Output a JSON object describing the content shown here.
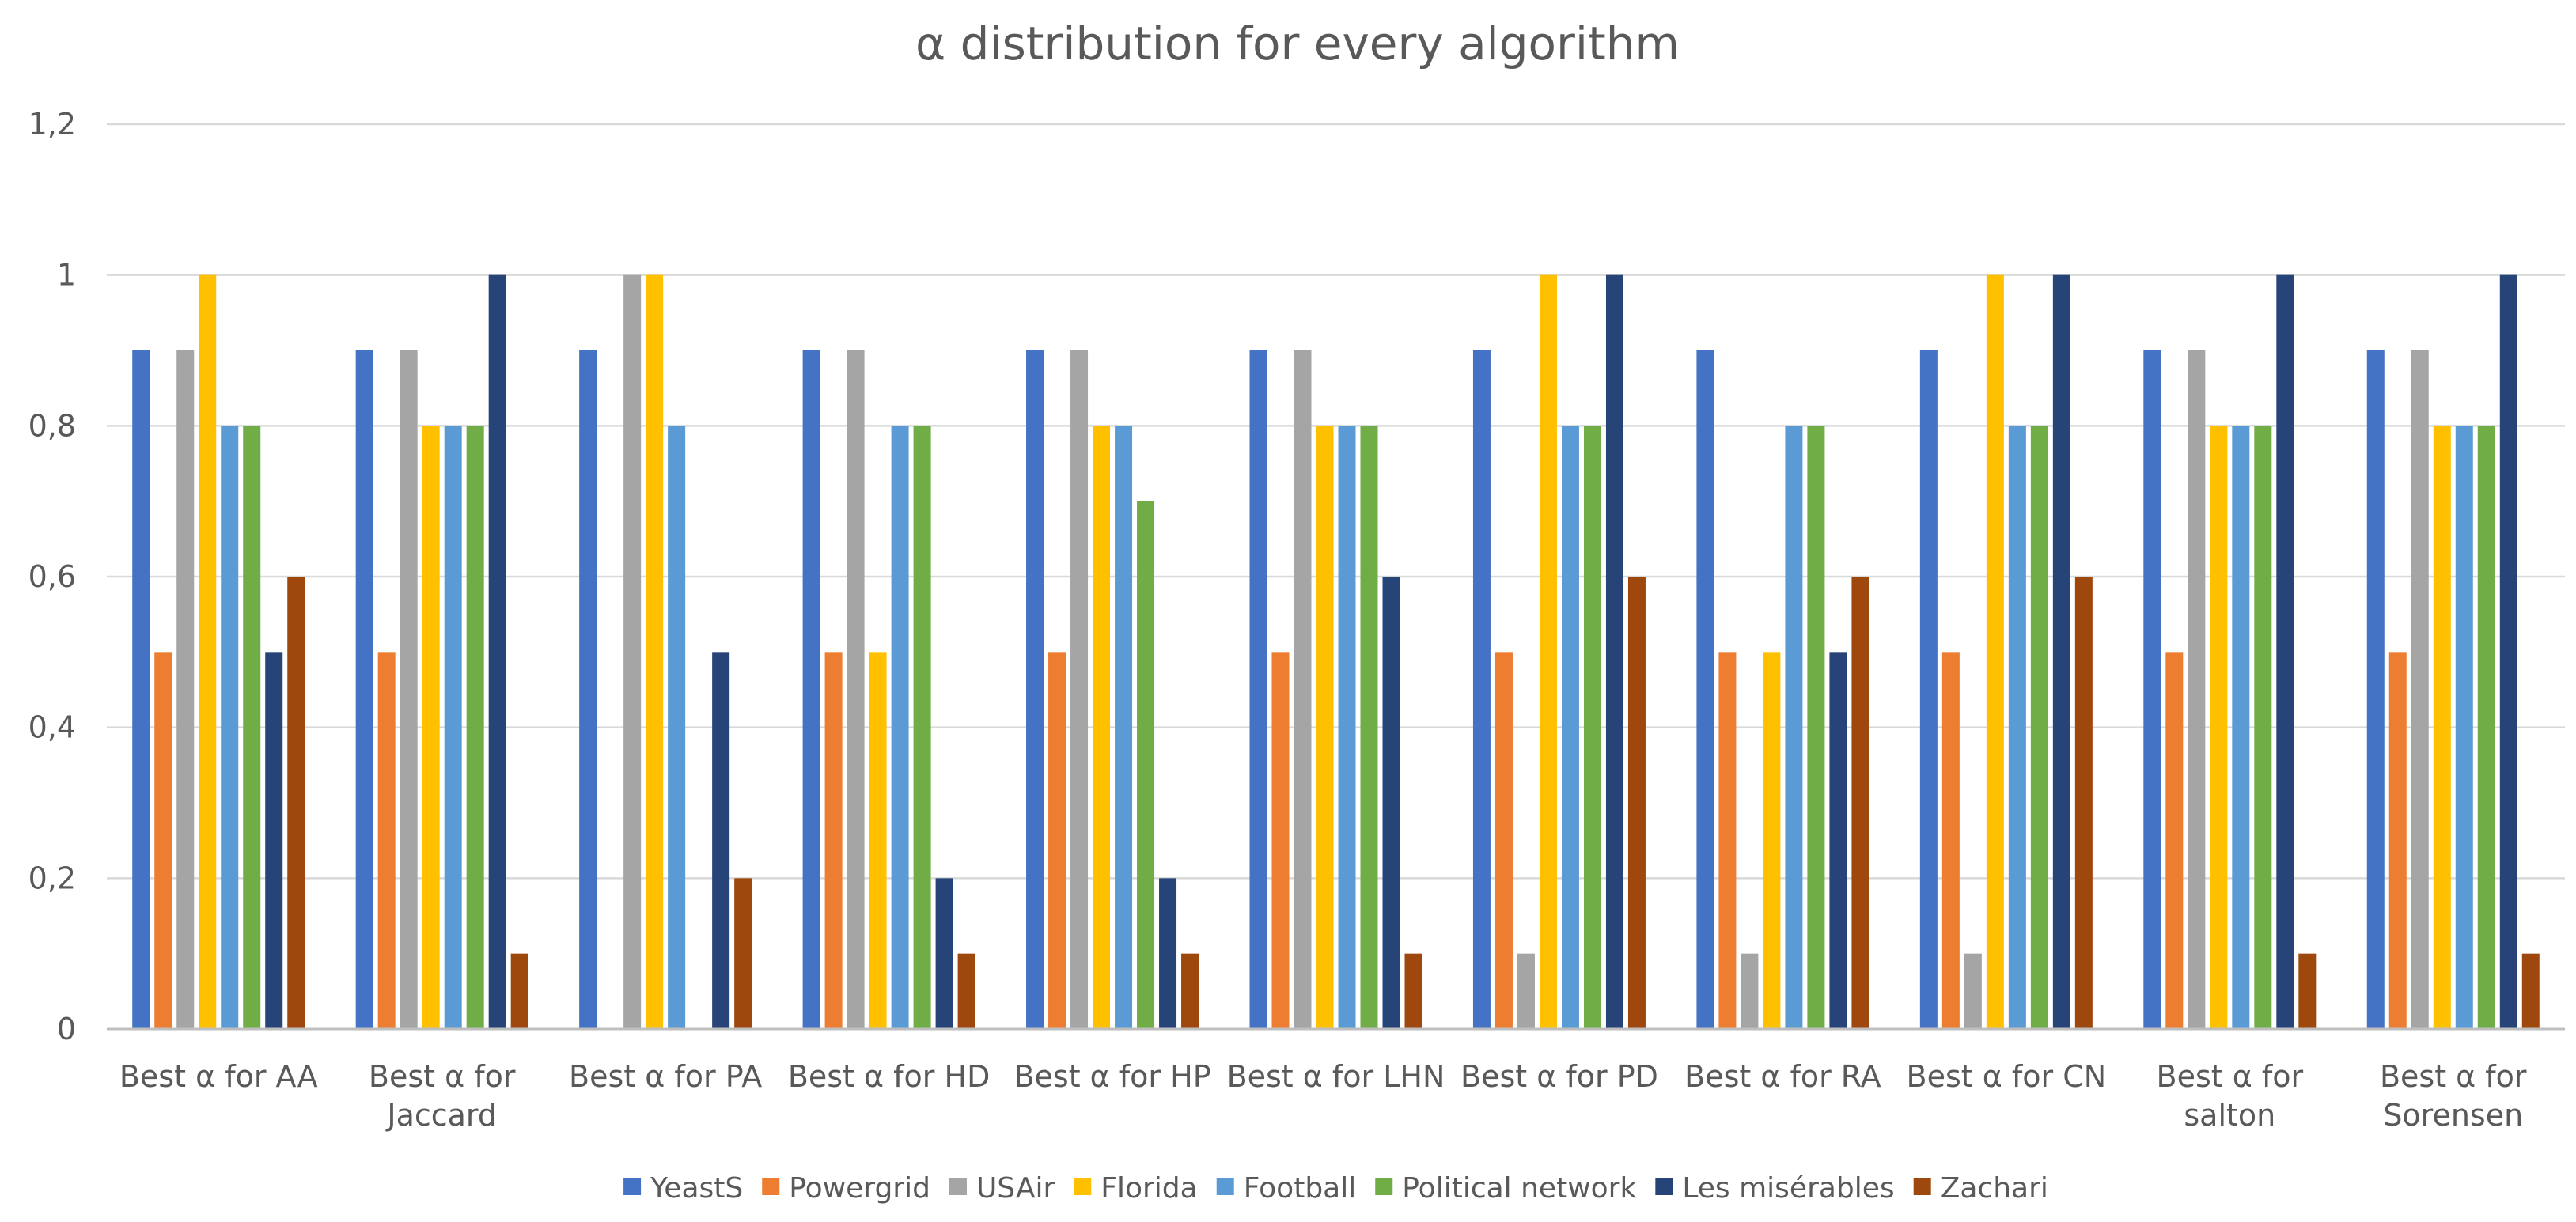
{
  "chart_data": {
    "type": "bar",
    "title": "α distribution for every algorithm",
    "xlabel": "",
    "ylabel": "",
    "ylim": [
      0,
      1.2
    ],
    "yticks": [
      "0",
      "0,2",
      "0,4",
      "0,6",
      "0,8",
      "1",
      "1,2"
    ],
    "grid": true,
    "legend_position": "bottom",
    "categories": [
      [
        "Best α for AA"
      ],
      [
        "Best α for",
        "Jaccard"
      ],
      [
        "Best α for PA"
      ],
      [
        "Best α for HD"
      ],
      [
        "Best α for HP"
      ],
      [
        "Best α for LHN"
      ],
      [
        "Best α for PD"
      ],
      [
        "Best α for RA"
      ],
      [
        "Best α for CN"
      ],
      [
        "Best α for",
        "salton"
      ],
      [
        "Best α for",
        "Sorensen"
      ]
    ],
    "series": [
      {
        "name": "YeastS",
        "color": "#4472C4",
        "values": [
          0.9,
          0.9,
          0.9,
          0.9,
          0.9,
          0.9,
          0.9,
          0.9,
          0.9,
          0.9,
          0.9
        ]
      },
      {
        "name": "Powergrid",
        "color": "#ED7D31",
        "values": [
          0.5,
          0.5,
          0,
          0.5,
          0.5,
          0.5,
          0.5,
          0.5,
          0.5,
          0.5,
          0.5
        ]
      },
      {
        "name": "USAir",
        "color": "#A5A5A5",
        "values": [
          0.9,
          0.9,
          1.0,
          0.9,
          0.9,
          0.9,
          0.1,
          0.1,
          0.1,
          0.9,
          0.9
        ]
      },
      {
        "name": "Florida",
        "color": "#FFC000",
        "values": [
          1.0,
          0.8,
          1.0,
          0.5,
          0.8,
          0.8,
          1.0,
          0.5,
          1.0,
          0.8,
          0.8
        ]
      },
      {
        "name": "Football",
        "color": "#5B9BD5",
        "values": [
          0.8,
          0.8,
          0.8,
          0.8,
          0.8,
          0.8,
          0.8,
          0.8,
          0.8,
          0.8,
          0.8
        ]
      },
      {
        "name": "Political network",
        "color": "#70AD47",
        "values": [
          0.8,
          0.8,
          0,
          0.8,
          0.7,
          0.8,
          0.8,
          0.8,
          0.8,
          0.8,
          0.8
        ]
      },
      {
        "name": "Les misérables",
        "color": "#264478",
        "values": [
          0.5,
          1.0,
          0.5,
          0.2,
          0.2,
          0.6,
          1.0,
          0.5,
          1.0,
          1.0,
          1.0
        ]
      },
      {
        "name": "Zachari",
        "color": "#9E480E",
        "values": [
          0.6,
          0.1,
          0.2,
          0.1,
          0.1,
          0.1,
          0.6,
          0.6,
          0.6,
          0.1,
          0.1
        ]
      }
    ]
  }
}
